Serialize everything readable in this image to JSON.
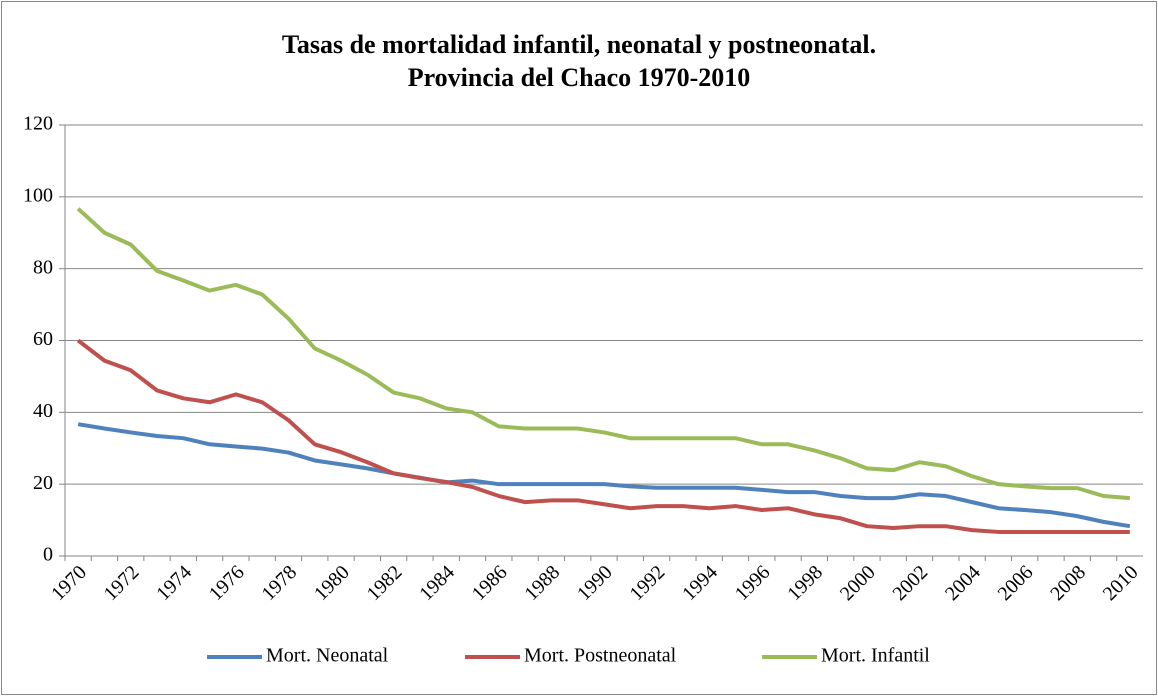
{
  "chart_data": {
    "type": "line",
    "title": [
      "Tasas de mortalidad infantil, neonatal y postneonatal.",
      "Provincia del Chaco 1970-2010"
    ],
    "categories": [
      "1970",
      null,
      "1972",
      null,
      "1974",
      null,
      "1976",
      null,
      "1978",
      null,
      "1980",
      null,
      "1982",
      null,
      "1984",
      null,
      "1986",
      null,
      "1988",
      null,
      "1990",
      null,
      "1992",
      null,
      "1994",
      null,
      "1996",
      null,
      "1998",
      null,
      "2000",
      null,
      "2002",
      null,
      "2004",
      null,
      "2006",
      null,
      "2008",
      null,
      "2010"
    ],
    "series": [
      {
        "name": "Mort. Neonatal",
        "color": "#4f81bd",
        "values": [
          36.7,
          35.5,
          34.4,
          33.4,
          32.8,
          31.1,
          30.5,
          29.9,
          28.8,
          26.6,
          25.5,
          24.4,
          23,
          21.8,
          20.5,
          21,
          20,
          20,
          20,
          20,
          20,
          19.4,
          19,
          19,
          19,
          19,
          18.4,
          17.8,
          17.8,
          16.7,
          16.1,
          16.1,
          17.2,
          16.7,
          15,
          13.3,
          12.8,
          12.2,
          11.1,
          9.5,
          8.3
        ]
      },
      {
        "name": "Mort. Postneonatal",
        "color": "#c0504d",
        "values": [
          60,
          54.4,
          51.7,
          46.1,
          43.9,
          42.8,
          45,
          42.8,
          37.8,
          31.1,
          28.9,
          26.1,
          23,
          21.7,
          20.6,
          19.2,
          16.7,
          15,
          15.5,
          15.5,
          14.4,
          13.3,
          13.9,
          13.9,
          13.3,
          13.9,
          12.8,
          13.3,
          11.6,
          10.5,
          8.3,
          7.8,
          8.3,
          8.3,
          7.2,
          6.7,
          6.7,
          6.7,
          6.7,
          6.7,
          6.7
        ]
      },
      {
        "name": "Mort. Infantil",
        "color": "#9bbb59",
        "values": [
          96.7,
          90,
          86.7,
          79.4,
          76.7,
          73.9,
          75.5,
          72.8,
          66.1,
          57.8,
          54.4,
          50.5,
          45.5,
          43.9,
          41.1,
          40,
          36.1,
          35.5,
          35.5,
          35.5,
          34.4,
          32.8,
          32.8,
          32.8,
          32.8,
          32.8,
          31.1,
          31.1,
          29.4,
          27.2,
          24.4,
          23.9,
          26.1,
          25,
          22.2,
          20,
          19.4,
          18.9,
          18.9,
          16.7,
          16.1
        ]
      }
    ],
    "ylim": [
      0,
      120
    ],
    "yticks": [
      0,
      20,
      40,
      60,
      80,
      100,
      120
    ],
    "grid": true,
    "legend": "bottom"
  }
}
